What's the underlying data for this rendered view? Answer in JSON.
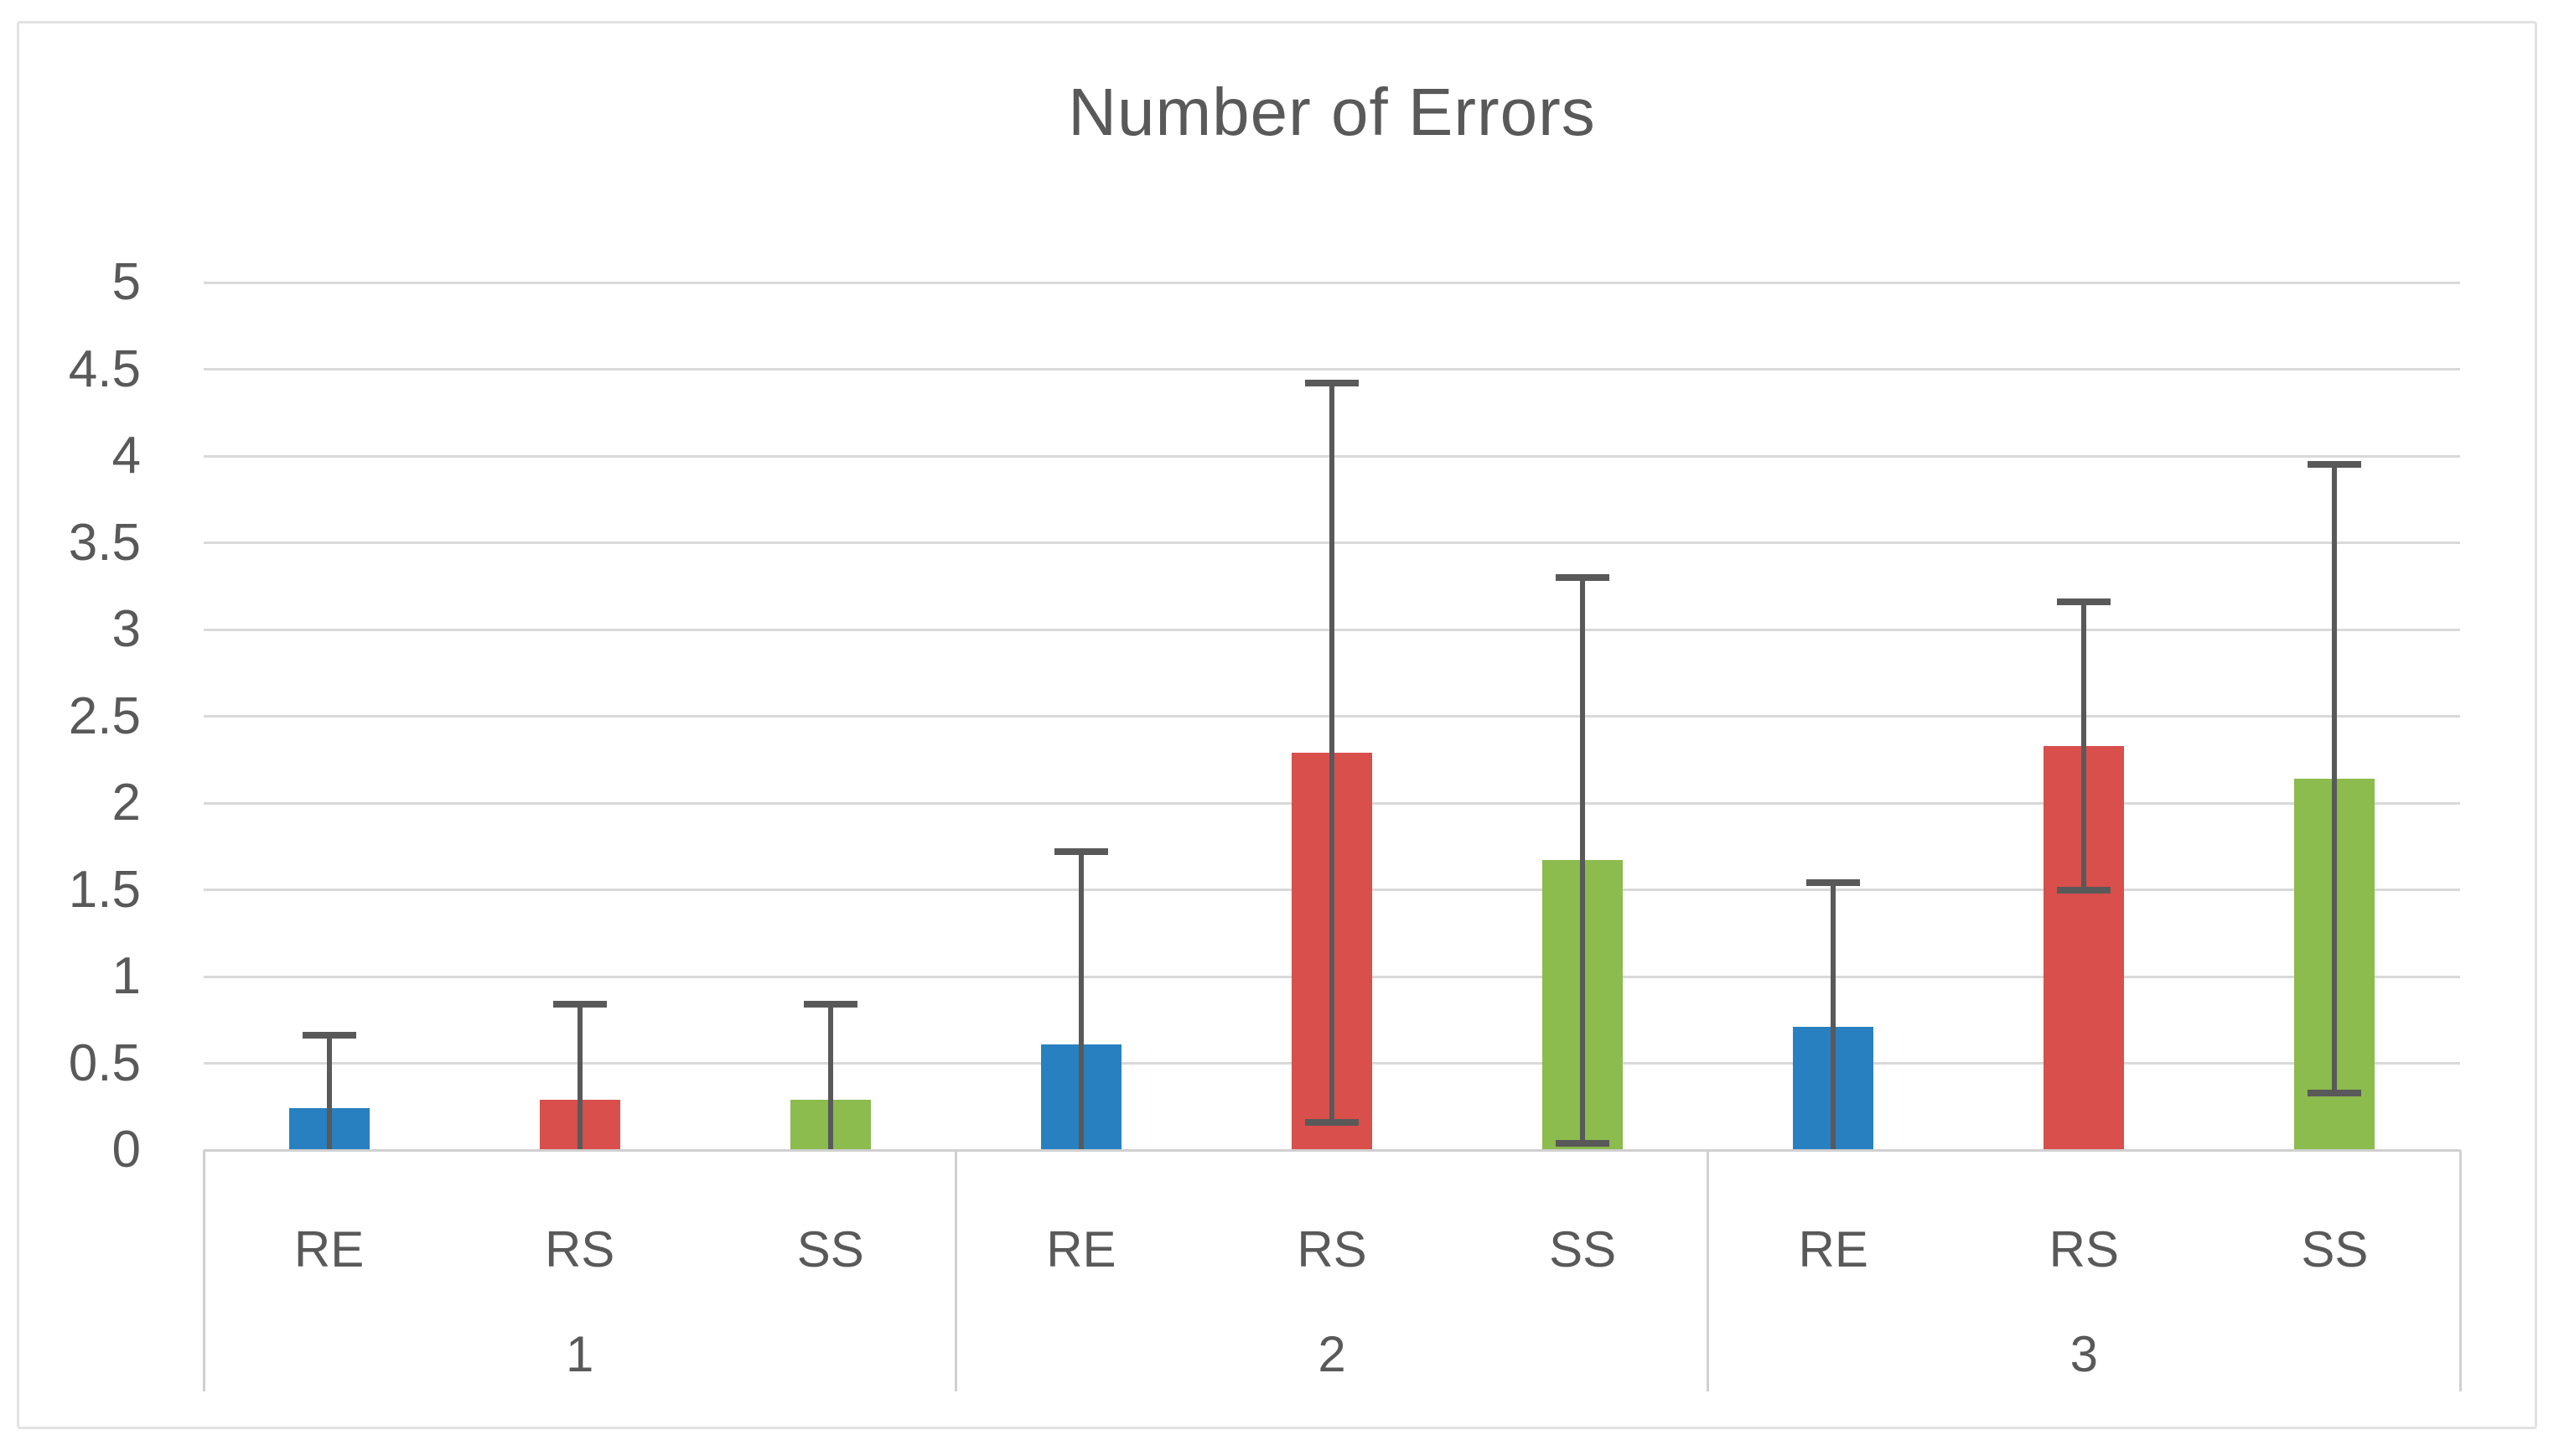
{
  "chart_data": {
    "type": "bar",
    "title": "Number of Errors",
    "groups": [
      "1",
      "2",
      "3"
    ],
    "subcategories": [
      "RE",
      "RS",
      "SS"
    ],
    "series": [
      {
        "name": "RE",
        "color": "#2880c0",
        "values": [
          0.24,
          0.61,
          0.71
        ],
        "error_top": [
          0.66,
          1.72,
          1.54
        ],
        "error_bottom": [
          null,
          null,
          null
        ]
      },
      {
        "name": "RS",
        "color": "#d94f4c",
        "values": [
          0.29,
          2.29,
          2.33
        ],
        "error_top": [
          0.84,
          4.42,
          3.16
        ],
        "error_bottom": [
          null,
          0.16,
          1.5
        ]
      },
      {
        "name": "SS",
        "color": "#8cbb4e",
        "values": [
          0.29,
          1.67,
          2.14
        ],
        "error_top": [
          0.84,
          3.3,
          3.95
        ],
        "error_bottom": [
          null,
          0.04,
          0.33
        ]
      }
    ],
    "ylim": [
      0,
      5
    ],
    "ytick_step": 0.5,
    "ytick_labels": [
      "0",
      "0.5",
      "1",
      "1.5",
      "2",
      "2.5",
      "3",
      "3.5",
      "4",
      "4.5",
      "5"
    ],
    "grid": true,
    "legend": "none",
    "error_bar_color": "#595959",
    "text_color": "#595959",
    "gridline_color": "#d9d9d9"
  }
}
